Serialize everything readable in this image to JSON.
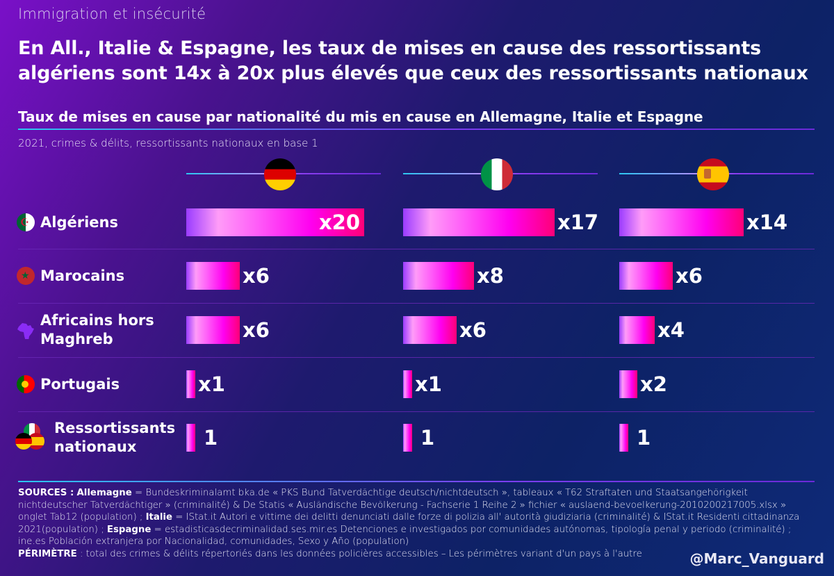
{
  "header": {
    "kicker": "Immigration et insécurité",
    "headline": "En All., Italie & Espagne, les taux de mises en cause des ressortissants algériens sont 14x à 20x plus élevés que ceux des ressortissants nationaux"
  },
  "chart_data": {
    "type": "bar",
    "orientation": "horizontal",
    "title": "Taux de mises en cause par nationalité du mis en cause en Allemagne, Italie et Espagne",
    "subtitle": "2021, crimes & délits, ressortissants nationaux en base 1",
    "panels": [
      {
        "name": "Allemagne",
        "flag": "germany-flag"
      },
      {
        "name": "Italie",
        "flag": "italy-flag"
      },
      {
        "name": "Espagne",
        "flag": "spain-flag"
      }
    ],
    "categories": [
      "Algériens",
      "Marocains",
      "Africains hors Maghreb",
      "Portugais",
      "Ressortissants nationaux"
    ],
    "category_lines": [
      [
        "Algériens"
      ],
      [
        "Marocains"
      ],
      [
        "Africains hors",
        "Maghreb"
      ],
      [
        "Portugais"
      ],
      [
        "Ressortissants",
        "nationaux"
      ]
    ],
    "category_icons": [
      "algeria-flag-icon",
      "morocco-flag-icon",
      "africa-map-icon",
      "portugal-flag-icon",
      "national-flags-icon"
    ],
    "series": [
      {
        "name": "Allemagne",
        "values": [
          20,
          6,
          6,
          1,
          1
        ],
        "labels": [
          "x20",
          "x6",
          "x6",
          "x1",
          "1"
        ]
      },
      {
        "name": "Italie",
        "values": [
          17,
          8,
          6,
          1,
          1
        ],
        "labels": [
          "x17",
          "x8",
          "x6",
          "x1",
          "1"
        ]
      },
      {
        "name": "Espagne",
        "values": [
          14,
          6,
          4,
          2,
          1
        ],
        "labels": [
          "x14",
          "x6",
          "x4",
          "x2",
          "1"
        ]
      }
    ],
    "xlim": [
      0,
      20
    ],
    "grid": false,
    "legend": "none",
    "bar_gradient": [
      "#9a3cff",
      "#ff9cf8",
      "#ff00f0",
      "#ff0077"
    ]
  },
  "footer": {
    "sources_label": "SOURCES :",
    "de_label": "Allemagne",
    "de_text": " = Bundeskriminalamt bka.de « PKS Bund Tatverdächtige deutsch/nichtdeutsch », tableaux « T62 Straftaten und Staatsangehörigkeit nichtdeutscher Tatverdächtiger » (criminalité) & De Statis « Ausländische Bevölkerung - Fachserie 1 Reihe 2 » fichier « auslaend-bevoelkerung-2010200217005.xlsx » onglet Tab12 (population) ; ",
    "it_label": "Italie",
    "it_text": " = IStat.it Autori e vittime dei delitti denunciati dalle forze di polizia all' autorità giudiziaria (criminalité) & IStat.it Residenti cittadinanza 2021(population) ; ",
    "es_label": "Espagne",
    "es_text": " = estadisticasdecriminalidad.ses.mir.es Detenciones e investigados por comunidades autónomas, tipología penal y periodo (criminalité) ; ine.es Población extranjera por Nacionalidad, comunidades, Sexo y Año (population)",
    "perimetre_label": "PÉRIMÈTRE",
    "perimetre_text": " : total des crimes & délits répertoriés dans les données policières accessibles – Les périmètres variant d'un pays à l'autre",
    "handle": "@Marc_Vanguard"
  }
}
